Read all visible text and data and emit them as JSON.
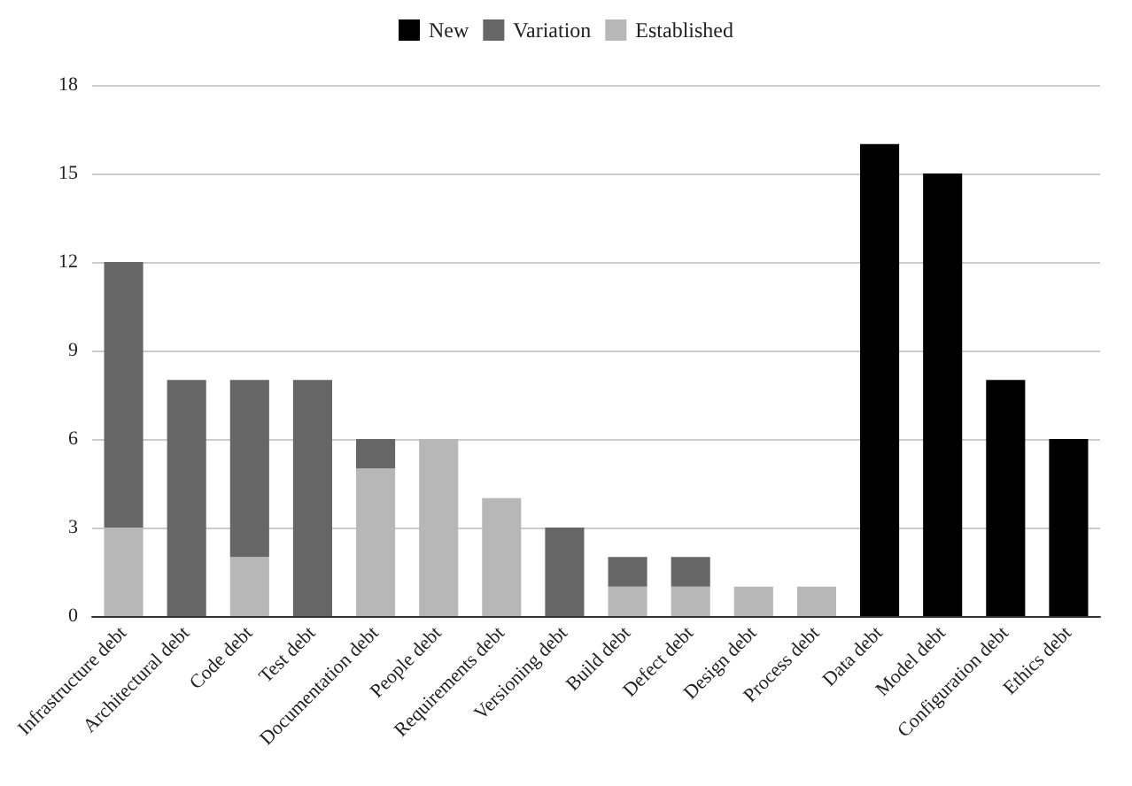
{
  "chart_data": {
    "type": "bar",
    "stacked": true,
    "categories": [
      "Infrastructure debt",
      "Architectural debt",
      "Code debt",
      "Test debt",
      "Documentation debt",
      "People debt",
      "Requirements debt",
      "Versioning debt",
      "Build debt",
      "Defect debt",
      "Design debt",
      "Process debt",
      "Data debt",
      "Model debt",
      "Configuration debt",
      "Ethics debt"
    ],
    "series": [
      {
        "name": "Established",
        "color": "#b7b7b7",
        "values": [
          3,
          null,
          2,
          null,
          5,
          6,
          4,
          null,
          1,
          1,
          1,
          1,
          null,
          null,
          null,
          null
        ]
      },
      {
        "name": "Variation",
        "color": "#666666",
        "values": [
          9,
          8,
          6,
          8,
          1,
          null,
          null,
          3,
          1,
          1,
          null,
          null,
          null,
          null,
          null,
          null
        ]
      },
      {
        "name": "New",
        "color": "#000000",
        "values": [
          null,
          null,
          null,
          null,
          null,
          null,
          null,
          null,
          null,
          null,
          null,
          null,
          16,
          15,
          8,
          6
        ]
      }
    ],
    "ylim": [
      0,
      18
    ],
    "yticks": [
      0,
      3,
      6,
      9,
      12,
      15,
      18
    ],
    "grid": "y",
    "legend": "top"
  }
}
